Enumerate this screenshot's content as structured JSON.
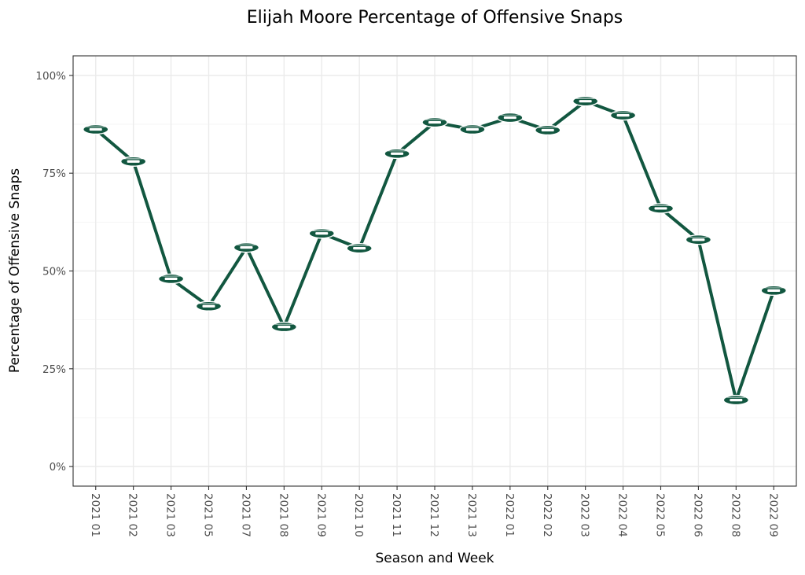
{
  "chart_data": {
    "type": "line",
    "title": "Elijah Moore Percentage of Offensive Snaps",
    "xlabel": "Season and Week",
    "ylabel": "Percentage of Offensive Snaps",
    "ylim": [
      -0.05,
      1.05
    ],
    "yticks": [
      0,
      0.25,
      0.5,
      0.75,
      1.0
    ],
    "ytick_labels": [
      "0%",
      "25%",
      "50%",
      "75%",
      "100%"
    ],
    "grid": true,
    "categories": [
      "2021 01",
      "2021 02",
      "2021 03",
      "2021 05",
      "2021 07",
      "2021 08",
      "2021 09",
      "2021 10",
      "2021 11",
      "2021 12",
      "2021 13",
      "2022 01",
      "2022 02",
      "2022 03",
      "2022 04",
      "2022 05",
      "2022 06",
      "2022 08",
      "2022 09"
    ],
    "series": [
      {
        "values": [
          0.862,
          0.78,
          0.48,
          0.41,
          0.56,
          0.357,
          0.596,
          0.558,
          0.8,
          0.88,
          0.862,
          0.892,
          0.86,
          0.934,
          0.898,
          0.66,
          0.58,
          0.17,
          0.45
        ],
        "color": "#125740",
        "marker": "jets-logo-icon"
      }
    ]
  }
}
